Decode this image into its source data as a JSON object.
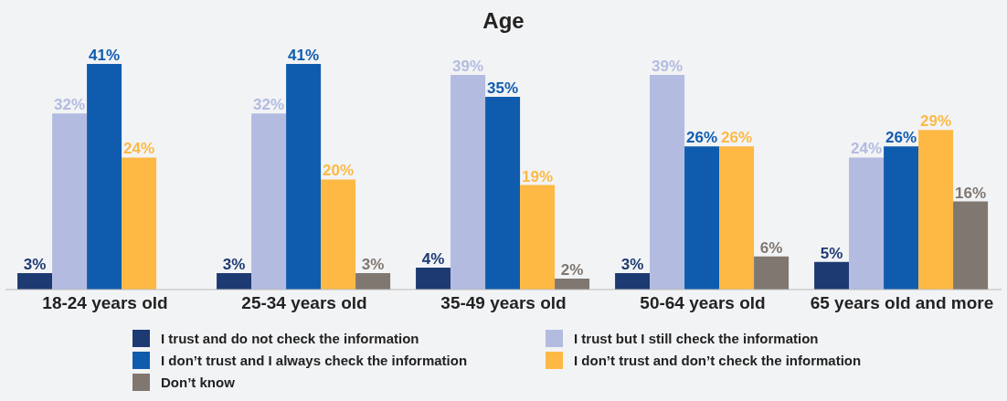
{
  "chart_data": {
    "type": "bar",
    "title": "Age",
    "categories": [
      "18-24 years old",
      "25-34 years old",
      "35-49 years old",
      "50-64 years old",
      "65 years old and more"
    ],
    "series": [
      {
        "name": "I trust and do not check the information",
        "color": "#1d3a72",
        "values": [
          3,
          3,
          4,
          3,
          5
        ],
        "value_labels": [
          "3%",
          "3%",
          "4%",
          "3%",
          "5%"
        ]
      },
      {
        "name": "I trust but I still check the information",
        "color": "#b3bbe0",
        "values": [
          32,
          32,
          39,
          39,
          24
        ],
        "value_labels": [
          "32%",
          "32%",
          "39%",
          "39%",
          "24%"
        ]
      },
      {
        "name": "I don’t trust and I always check the information",
        "color": "#0f5cae",
        "values": [
          41,
          41,
          35,
          26,
          26
        ],
        "value_labels": [
          "41%",
          "41%",
          "35%",
          "26%",
          "26%"
        ]
      },
      {
        "name": "I don’t trust and don’t check the information",
        "color": "#fdb944",
        "values": [
          24,
          20,
          19,
          26,
          29
        ],
        "value_labels": [
          "24%",
          "20%",
          "19%",
          "26%",
          "29%"
        ]
      },
      {
        "name": "Don’t know",
        "color": "#7f7770",
        "values": [
          null,
          3,
          2,
          6,
          16
        ],
        "value_labels": [
          null,
          "3%",
          "2%",
          "6%",
          "16%"
        ]
      }
    ],
    "legend": "bottom",
    "grid": false
  }
}
